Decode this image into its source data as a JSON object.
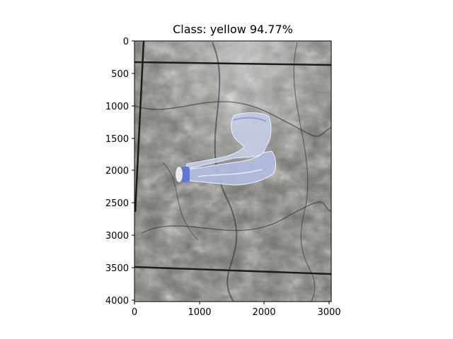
{
  "title": "Class: yellow 94.77%",
  "axes": {
    "x_ticks": [
      "0",
      "1000",
      "2000",
      "3000"
    ],
    "y_ticks": [
      "0",
      "500",
      "1000",
      "1500",
      "2000",
      "2500",
      "3000",
      "3500",
      "4000"
    ]
  },
  "image": {
    "subject": "crushed clear plastic water bottle with blue cap",
    "background": "grey marble floor tiles"
  },
  "colors": {
    "frame": "#000000",
    "floor": "#7a7a74",
    "bottle": "#b9c4e6",
    "cap": "#5f78d8"
  }
}
